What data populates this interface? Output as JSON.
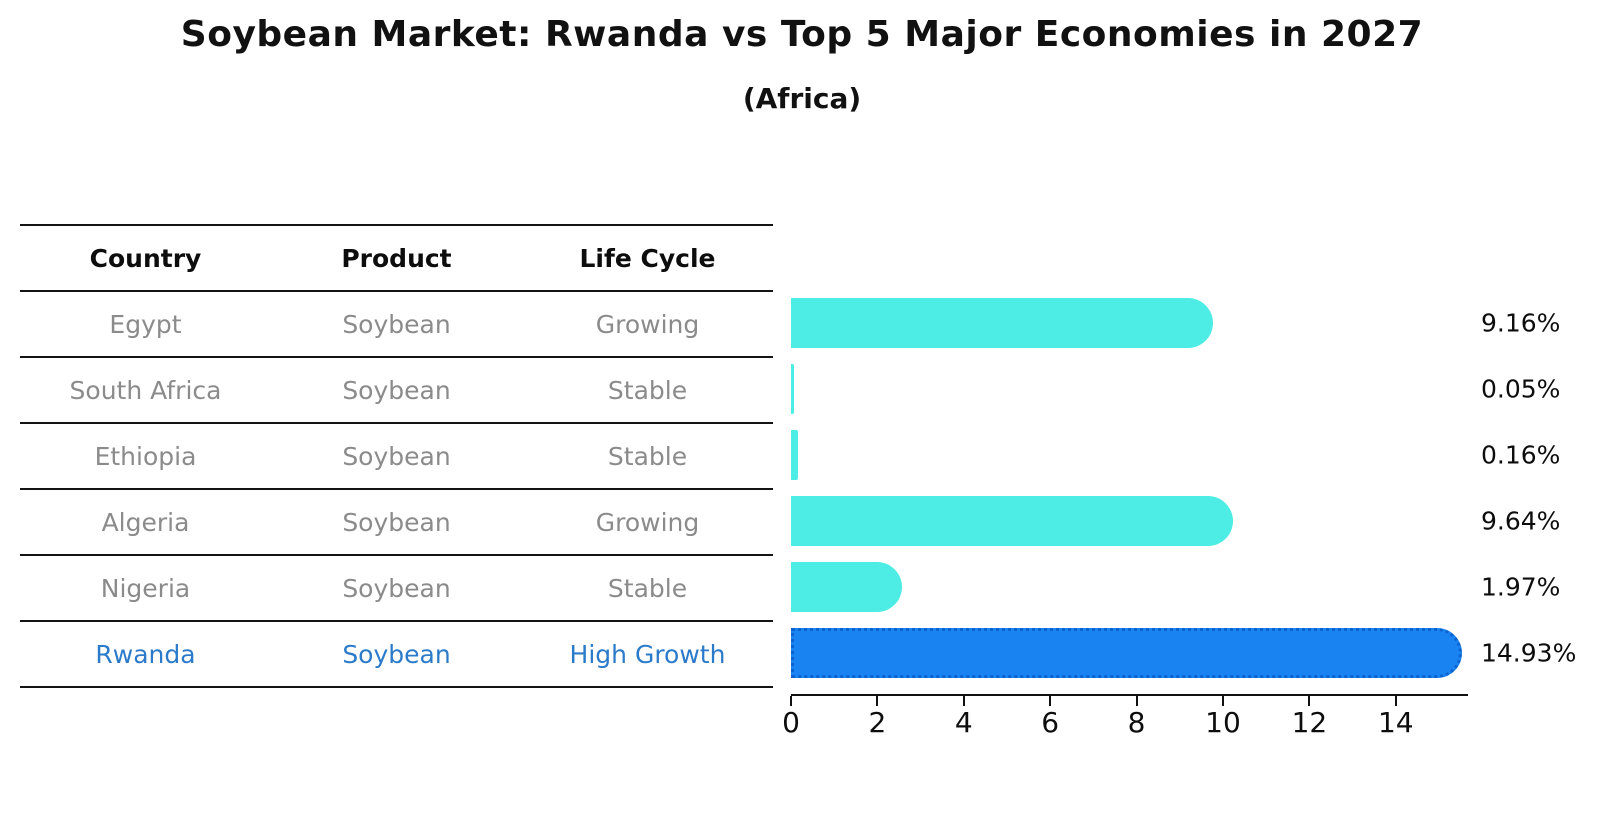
{
  "title": "Soybean Market: Rwanda vs Top 5 Major Economies in 2027",
  "subtitle": "(Africa)",
  "table": {
    "headers": {
      "country": "Country",
      "product": "Product",
      "life_cycle": "Life Cycle"
    },
    "rows": [
      {
        "country": "Egypt",
        "product": "Soybean",
        "life_cycle": "Growing",
        "highlight": false
      },
      {
        "country": "South Africa",
        "product": "Soybean",
        "life_cycle": "Stable",
        "highlight": false
      },
      {
        "country": "Ethiopia",
        "product": "Soybean",
        "life_cycle": "Stable",
        "highlight": false
      },
      {
        "country": "Algeria",
        "product": "Soybean",
        "life_cycle": "Growing",
        "highlight": false
      },
      {
        "country": "Nigeria",
        "product": "Soybean",
        "life_cycle": "Stable",
        "highlight": false
      },
      {
        "country": "Rwanda",
        "product": "Soybean",
        "life_cycle": "High Growth",
        "highlight": true
      }
    ]
  },
  "chart_data": {
    "type": "bar",
    "orientation": "horizontal",
    "title": "Soybean Market: Rwanda vs Top 5 Major Economies in 2027",
    "subtitle": "(Africa)",
    "categories": [
      "Egypt",
      "South Africa",
      "Ethiopia",
      "Algeria",
      "Nigeria",
      "Rwanda"
    ],
    "values": [
      9.16,
      0.05,
      0.16,
      9.64,
      1.97,
      14.93
    ],
    "value_labels": [
      "9.16%",
      "0.05%",
      "0.16%",
      "9.64%",
      "1.97%",
      "14.93%"
    ],
    "x_ticks": [
      0,
      2,
      4,
      6,
      8,
      10,
      12,
      14
    ],
    "xlim": [
      0,
      15.6
    ],
    "highlight_index": 5,
    "grid": false,
    "legend": false
  },
  "colors": {
    "bar_default": "#4dece4",
    "bar_highlight": "#1a83f2",
    "bar_highlight_border": "#0c63cf",
    "highlight_text": "#2b7bca",
    "table_text": "#8b8b8b",
    "heading_text": "#0d0d0d",
    "axis_color": "#111111"
  }
}
